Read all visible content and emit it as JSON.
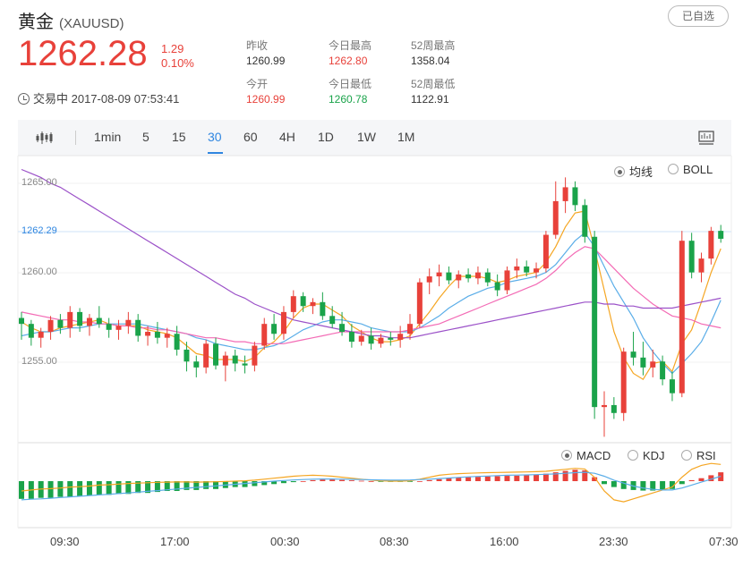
{
  "header": {
    "name": "黄金",
    "symbol": "(XAUUSD)",
    "select_button": "已自选"
  },
  "quote": {
    "price": "1262.28",
    "change": "1.29",
    "change_pct": "0.10%",
    "status": "交易中 2017-08-09 07:53:41"
  },
  "stats": [
    {
      "label": "昨收",
      "value": "1260.99",
      "color": "#333333"
    },
    {
      "label": "今日最高",
      "value": "1262.80",
      "color": "#e8413a"
    },
    {
      "label": "52周最高",
      "value": "1358.04",
      "color": "#333333"
    },
    {
      "label": "今开",
      "value": "1260.99",
      "color": "#e8413a"
    },
    {
      "label": "今日最低",
      "value": "1260.78",
      "color": "#1aa34a"
    },
    {
      "label": "52周最低",
      "value": "1122.91",
      "color": "#333333"
    }
  ],
  "toolbar": {
    "periods": [
      "1min",
      "5",
      "15",
      "30",
      "60",
      "4H",
      "1D",
      "1W",
      "1M"
    ],
    "active_period": "30"
  },
  "chart_toggles": {
    "main": [
      {
        "label": "均线",
        "selected": true
      },
      {
        "label": "BOLL",
        "selected": false
      }
    ],
    "indicator": [
      {
        "label": "MACD",
        "selected": true
      },
      {
        "label": "KDJ",
        "selected": false
      },
      {
        "label": "RSI",
        "selected": false
      }
    ]
  },
  "colors": {
    "up": "#e8413a",
    "down": "#1aa34a",
    "accent": "#2f86e0"
  },
  "chart_data": {
    "type": "candlestick",
    "y_ticks": [
      "1265.00",
      "1260.00",
      "1255.00"
    ],
    "current_price_label": "1262.29",
    "ylim": [
      1252,
      1266.5
    ],
    "x_ticks": [
      "09:30",
      "17:00",
      "00:30",
      "08:30",
      "16:00",
      "23:30",
      "07:30"
    ],
    "candles": [
      [
        1258.3,
        1258.6,
        1257.2,
        1258.0
      ],
      [
        1258.0,
        1258.2,
        1256.9,
        1257.3
      ],
      [
        1257.3,
        1257.8,
        1256.8,
        1257.6
      ],
      [
        1257.6,
        1258.4,
        1257.2,
        1258.2
      ],
      [
        1258.2,
        1258.5,
        1257.5,
        1257.8
      ],
      [
        1257.8,
        1258.9,
        1257.3,
        1258.6
      ],
      [
        1258.6,
        1258.8,
        1257.6,
        1257.9
      ],
      [
        1257.9,
        1258.5,
        1257.4,
        1258.3
      ],
      [
        1258.3,
        1258.9,
        1257.8,
        1258.0
      ],
      [
        1258.0,
        1258.3,
        1257.3,
        1257.7
      ],
      [
        1257.7,
        1258.2,
        1257.2,
        1257.9
      ],
      [
        1257.9,
        1258.6,
        1257.5,
        1258.2
      ],
      [
        1258.2,
        1258.5,
        1257.1,
        1257.4
      ],
      [
        1257.4,
        1257.9,
        1256.9,
        1257.6
      ],
      [
        1257.6,
        1258.1,
        1257.0,
        1257.3
      ],
      [
        1257.3,
        1257.8,
        1256.8,
        1257.5
      ],
      [
        1257.5,
        1257.9,
        1256.4,
        1256.7
      ],
      [
        1256.7,
        1257.1,
        1255.6,
        1256.1
      ],
      [
        1256.1,
        1256.4,
        1255.3,
        1255.8
      ],
      [
        1255.8,
        1257.2,
        1255.5,
        1257.0
      ],
      [
        1257.0,
        1257.3,
        1255.7,
        1255.9
      ],
      [
        1255.9,
        1256.6,
        1255.1,
        1256.4
      ],
      [
        1256.4,
        1256.7,
        1255.6,
        1256.0
      ],
      [
        1256.0,
        1256.4,
        1255.5,
        1255.9
      ],
      [
        1255.9,
        1257.1,
        1255.6,
        1256.9
      ],
      [
        1256.9,
        1258.3,
        1256.7,
        1258.0
      ],
      [
        1258.0,
        1258.5,
        1257.2,
        1257.5
      ],
      [
        1257.5,
        1258.9,
        1257.2,
        1258.6
      ],
      [
        1258.6,
        1259.7,
        1258.3,
        1259.4
      ],
      [
        1259.4,
        1259.6,
        1258.6,
        1258.9
      ],
      [
        1258.9,
        1259.3,
        1258.5,
        1259.1
      ],
      [
        1259.1,
        1259.6,
        1258.2,
        1258.4
      ],
      [
        1258.4,
        1258.9,
        1257.8,
        1258.0
      ],
      [
        1258.0,
        1258.6,
        1257.4,
        1257.6
      ],
      [
        1257.6,
        1258.0,
        1256.8,
        1257.1
      ],
      [
        1257.1,
        1257.7,
        1256.9,
        1257.4
      ],
      [
        1257.4,
        1257.8,
        1256.7,
        1257.0
      ],
      [
        1257.0,
        1257.5,
        1256.8,
        1257.3
      ],
      [
        1257.3,
        1257.6,
        1256.9,
        1257.2
      ],
      [
        1257.2,
        1257.9,
        1256.8,
        1257.5
      ],
      [
        1257.5,
        1258.5,
        1257.2,
        1258.0
      ],
      [
        1258.0,
        1260.3,
        1257.8,
        1260.1
      ],
      [
        1260.1,
        1260.8,
        1259.5,
        1260.4
      ],
      [
        1260.4,
        1261.0,
        1259.9,
        1260.6
      ],
      [
        1260.6,
        1260.9,
        1260.0,
        1260.2
      ],
      [
        1260.2,
        1260.7,
        1259.8,
        1260.5
      ],
      [
        1260.5,
        1260.8,
        1260.1,
        1260.3
      ],
      [
        1260.3,
        1260.9,
        1260.0,
        1260.6
      ],
      [
        1260.6,
        1260.8,
        1259.9,
        1260.1
      ],
      [
        1260.1,
        1260.5,
        1259.4,
        1259.7
      ],
      [
        1259.7,
        1260.9,
        1259.5,
        1260.7
      ],
      [
        1260.7,
        1261.3,
        1260.3,
        1260.9
      ],
      [
        1260.9,
        1261.2,
        1260.4,
        1260.6
      ],
      [
        1260.6,
        1261.1,
        1260.3,
        1260.8
      ],
      [
        1260.8,
        1262.7,
        1260.6,
        1262.5
      ],
      [
        1262.5,
        1265.2,
        1262.3,
        1264.2
      ],
      [
        1264.2,
        1265.4,
        1263.6,
        1264.9
      ],
      [
        1264.9,
        1265.2,
        1263.7,
        1264.0
      ],
      [
        1264.0,
        1264.3,
        1262.1,
        1262.4
      ],
      [
        1262.4,
        1262.7,
        1253.2,
        1253.8
      ],
      [
        1253.8,
        1254.6,
        1252.3,
        1253.9
      ],
      [
        1253.9,
        1254.3,
        1253.2,
        1253.5
      ],
      [
        1253.5,
        1256.8,
        1253.1,
        1256.6
      ],
      [
        1256.6,
        1257.6,
        1255.9,
        1256.3
      ],
      [
        1256.3,
        1257.1,
        1255.4,
        1255.8
      ],
      [
        1255.8,
        1256.7,
        1255.3,
        1256.1
      ],
      [
        1256.1,
        1256.4,
        1254.9,
        1255.2
      ],
      [
        1255.2,
        1255.6,
        1254.1,
        1254.5
      ],
      [
        1254.5,
        1262.7,
        1254.3,
        1262.2
      ],
      [
        1262.2,
        1262.6,
        1260.3,
        1260.6
      ],
      [
        1260.6,
        1261.6,
        1260.1,
        1261.3
      ],
      [
        1261.3,
        1262.9,
        1261.0,
        1262.7
      ],
      [
        1262.7,
        1263.0,
        1262.1,
        1262.3
      ]
    ],
    "ma_series": [
      {
        "color": "#f5a623",
        "values": [
          1258.1,
          1257.8,
          1257.6,
          1257.6,
          1257.8,
          1257.9,
          1258.0,
          1258.1,
          1258.2,
          1258.0,
          1257.9,
          1257.9,
          1257.9,
          1257.7,
          1257.6,
          1257.5,
          1257.3,
          1256.9,
          1256.5,
          1256.4,
          1256.2,
          1256.2,
          1256.2,
          1256.1,
          1256.3,
          1256.8,
          1257.1,
          1257.6,
          1258.3,
          1258.8,
          1259.0,
          1259.0,
          1258.7,
          1258.4,
          1257.9,
          1257.6,
          1257.3,
          1257.1,
          1257.1,
          1257.2,
          1257.4,
          1258.0,
          1258.6,
          1259.3,
          1259.9,
          1260.4,
          1260.4,
          1260.4,
          1260.3,
          1260.1,
          1260.2,
          1260.4,
          1260.5,
          1260.6,
          1261.1,
          1261.9,
          1262.9,
          1263.6,
          1263.7,
          1261.8,
          1259.7,
          1257.6,
          1256.3,
          1255.5,
          1255.2,
          1256.0,
          1256.1,
          1255.6,
          1257.0,
          1257.7,
          1259.1,
          1260.6,
          1261.8
        ]
      },
      {
        "color": "#5aade8",
        "values": [
          1257.4,
          1257.5,
          1257.6,
          1257.6,
          1257.7,
          1257.8,
          1257.8,
          1257.9,
          1258.0,
          1258.0,
          1258.0,
          1258.0,
          1258.0,
          1257.9,
          1257.8,
          1257.7,
          1257.6,
          1257.5,
          1257.3,
          1257.2,
          1257.0,
          1256.9,
          1256.8,
          1256.7,
          1256.7,
          1256.8,
          1256.9,
          1257.1,
          1257.4,
          1257.7,
          1257.9,
          1258.1,
          1258.2,
          1258.2,
          1258.1,
          1258.0,
          1257.8,
          1257.7,
          1257.6,
          1257.6,
          1257.6,
          1257.8,
          1258.1,
          1258.4,
          1258.8,
          1259.1,
          1259.4,
          1259.6,
          1259.8,
          1259.9,
          1260.1,
          1260.2,
          1260.3,
          1260.4,
          1260.6,
          1261.0,
          1261.6,
          1262.2,
          1262.6,
          1261.9,
          1260.9,
          1259.9,
          1259.1,
          1258.3,
          1257.3,
          1256.6,
          1256.0,
          1255.5,
          1256.0,
          1256.5,
          1257.1,
          1258.1,
          1259.2
        ]
      },
      {
        "color": "#f36bb5",
        "values": [
          1258.6,
          1258.5,
          1258.4,
          1258.3,
          1258.2,
          1258.2,
          1258.1,
          1258.1,
          1258.0,
          1258.0,
          1257.9,
          1257.9,
          1257.8,
          1257.8,
          1257.7,
          1257.7,
          1257.6,
          1257.5,
          1257.4,
          1257.3,
          1257.3,
          1257.2,
          1257.1,
          1257.1,
          1257.0,
          1257.0,
          1257.0,
          1257.0,
          1257.1,
          1257.2,
          1257.3,
          1257.4,
          1257.5,
          1257.6,
          1257.6,
          1257.6,
          1257.6,
          1257.6,
          1257.6,
          1257.6,
          1257.7,
          1257.8,
          1257.9,
          1258.0,
          1258.2,
          1258.4,
          1258.6,
          1258.8,
          1259.0,
          1259.2,
          1259.4,
          1259.6,
          1259.8,
          1260.0,
          1260.3,
          1260.7,
          1261.2,
          1261.6,
          1261.9,
          1261.8,
          1261.3,
          1260.8,
          1260.3,
          1259.8,
          1259.4,
          1259.0,
          1258.7,
          1258.4,
          1258.3,
          1258.2,
          1258.0,
          1257.9,
          1257.8
        ]
      },
      {
        "color": "#9b51c8",
        "values": [
          1265.8,
          1265.6,
          1265.4,
          1265.1,
          1264.9,
          1264.6,
          1264.3,
          1264.0,
          1263.7,
          1263.4,
          1263.1,
          1262.8,
          1262.5,
          1262.2,
          1261.9,
          1261.6,
          1261.3,
          1261.0,
          1260.7,
          1260.4,
          1260.1,
          1259.8,
          1259.5,
          1259.3,
          1259.0,
          1258.8,
          1258.6,
          1258.4,
          1258.2,
          1258.1,
          1258.0,
          1257.9,
          1257.8,
          1257.7,
          1257.6,
          1257.5,
          1257.4,
          1257.4,
          1257.3,
          1257.3,
          1257.3,
          1257.4,
          1257.5,
          1257.6,
          1257.7,
          1257.8,
          1257.9,
          1258.0,
          1258.1,
          1258.2,
          1258.3,
          1258.4,
          1258.5,
          1258.6,
          1258.7,
          1258.8,
          1258.9,
          1259.0,
          1259.1,
          1259.1,
          1259.0,
          1259.0,
          1258.9,
          1258.9,
          1258.8,
          1258.8,
          1258.8,
          1258.8,
          1258.9,
          1259.0,
          1259.1,
          1259.2,
          1259.3
        ]
      }
    ],
    "macd_hist": [
      -0.9,
      -0.9,
      -0.85,
      -0.85,
      -0.8,
      -0.8,
      -0.75,
      -0.75,
      -0.7,
      -0.7,
      -0.65,
      -0.65,
      -0.6,
      -0.6,
      -0.55,
      -0.5,
      -0.5,
      -0.45,
      -0.45,
      -0.4,
      -0.4,
      -0.35,
      -0.3,
      -0.3,
      -0.25,
      -0.2,
      -0.15,
      -0.1,
      -0.05,
      0,
      0.05,
      0.08,
      0.08,
      0.06,
      0.04,
      0.02,
      0,
      -0.02,
      -0.03,
      -0.03,
      -0.02,
      0,
      0.05,
      0.1,
      0.15,
      0.18,
      0.2,
      0.22,
      0.24,
      0.25,
      0.27,
      0.28,
      0.3,
      0.32,
      0.38,
      0.45,
      0.52,
      0.58,
      0.55,
      0.2,
      -0.15,
      -0.3,
      -0.4,
      -0.45,
      -0.48,
      -0.48,
      -0.45,
      -0.4,
      -0.15,
      0.05,
      0.15,
      0.3,
      0.45
    ],
    "macd_dif": [
      -0.5,
      -0.45,
      -0.4,
      -0.38,
      -0.35,
      -0.3,
      -0.28,
      -0.25,
      -0.2,
      -0.18,
      -0.15,
      -0.12,
      -0.1,
      -0.08,
      -0.06,
      -0.05,
      -0.04,
      -0.04,
      -0.05,
      -0.04,
      -0.03,
      -0.02,
      0,
      0.02,
      0.05,
      0.1,
      0.15,
      0.2,
      0.25,
      0.28,
      0.3,
      0.28,
      0.25,
      0.2,
      0.15,
      0.1,
      0.05,
      0.02,
      0,
      0,
      0.02,
      0.1,
      0.2,
      0.3,
      0.35,
      0.38,
      0.4,
      0.42,
      0.43,
      0.44,
      0.45,
      0.46,
      0.47,
      0.48,
      0.5,
      0.55,
      0.6,
      0.65,
      0.62,
      0.2,
      -0.5,
      -0.95,
      -1.05,
      -0.9,
      -0.75,
      -0.6,
      -0.45,
      -0.3,
      0.2,
      0.6,
      0.8,
      0.9,
      0.85
    ],
    "macd_dea": [
      -0.95,
      -0.92,
      -0.9,
      -0.87,
      -0.83,
      -0.8,
      -0.77,
      -0.73,
      -0.7,
      -0.67,
      -0.63,
      -0.6,
      -0.56,
      -0.52,
      -0.48,
      -0.44,
      -0.4,
      -0.36,
      -0.32,
      -0.28,
      -0.24,
      -0.2,
      -0.16,
      -0.12,
      -0.08,
      -0.04,
      0,
      0.03,
      0.06,
      0.08,
      0.1,
      0.11,
      0.11,
      0.1,
      0.09,
      0.08,
      0.07,
      0.06,
      0.05,
      0.05,
      0.06,
      0.08,
      0.1,
      0.13,
      0.16,
      0.19,
      0.22,
      0.24,
      0.26,
      0.28,
      0.3,
      0.31,
      0.32,
      0.33,
      0.35,
      0.37,
      0.4,
      0.43,
      0.45,
      0.4,
      0.25,
      0.05,
      -0.1,
      -0.25,
      -0.35,
      -0.42,
      -0.45,
      -0.45,
      -0.35,
      -0.2,
      -0.05,
      0.1,
      0.25
    ]
  }
}
